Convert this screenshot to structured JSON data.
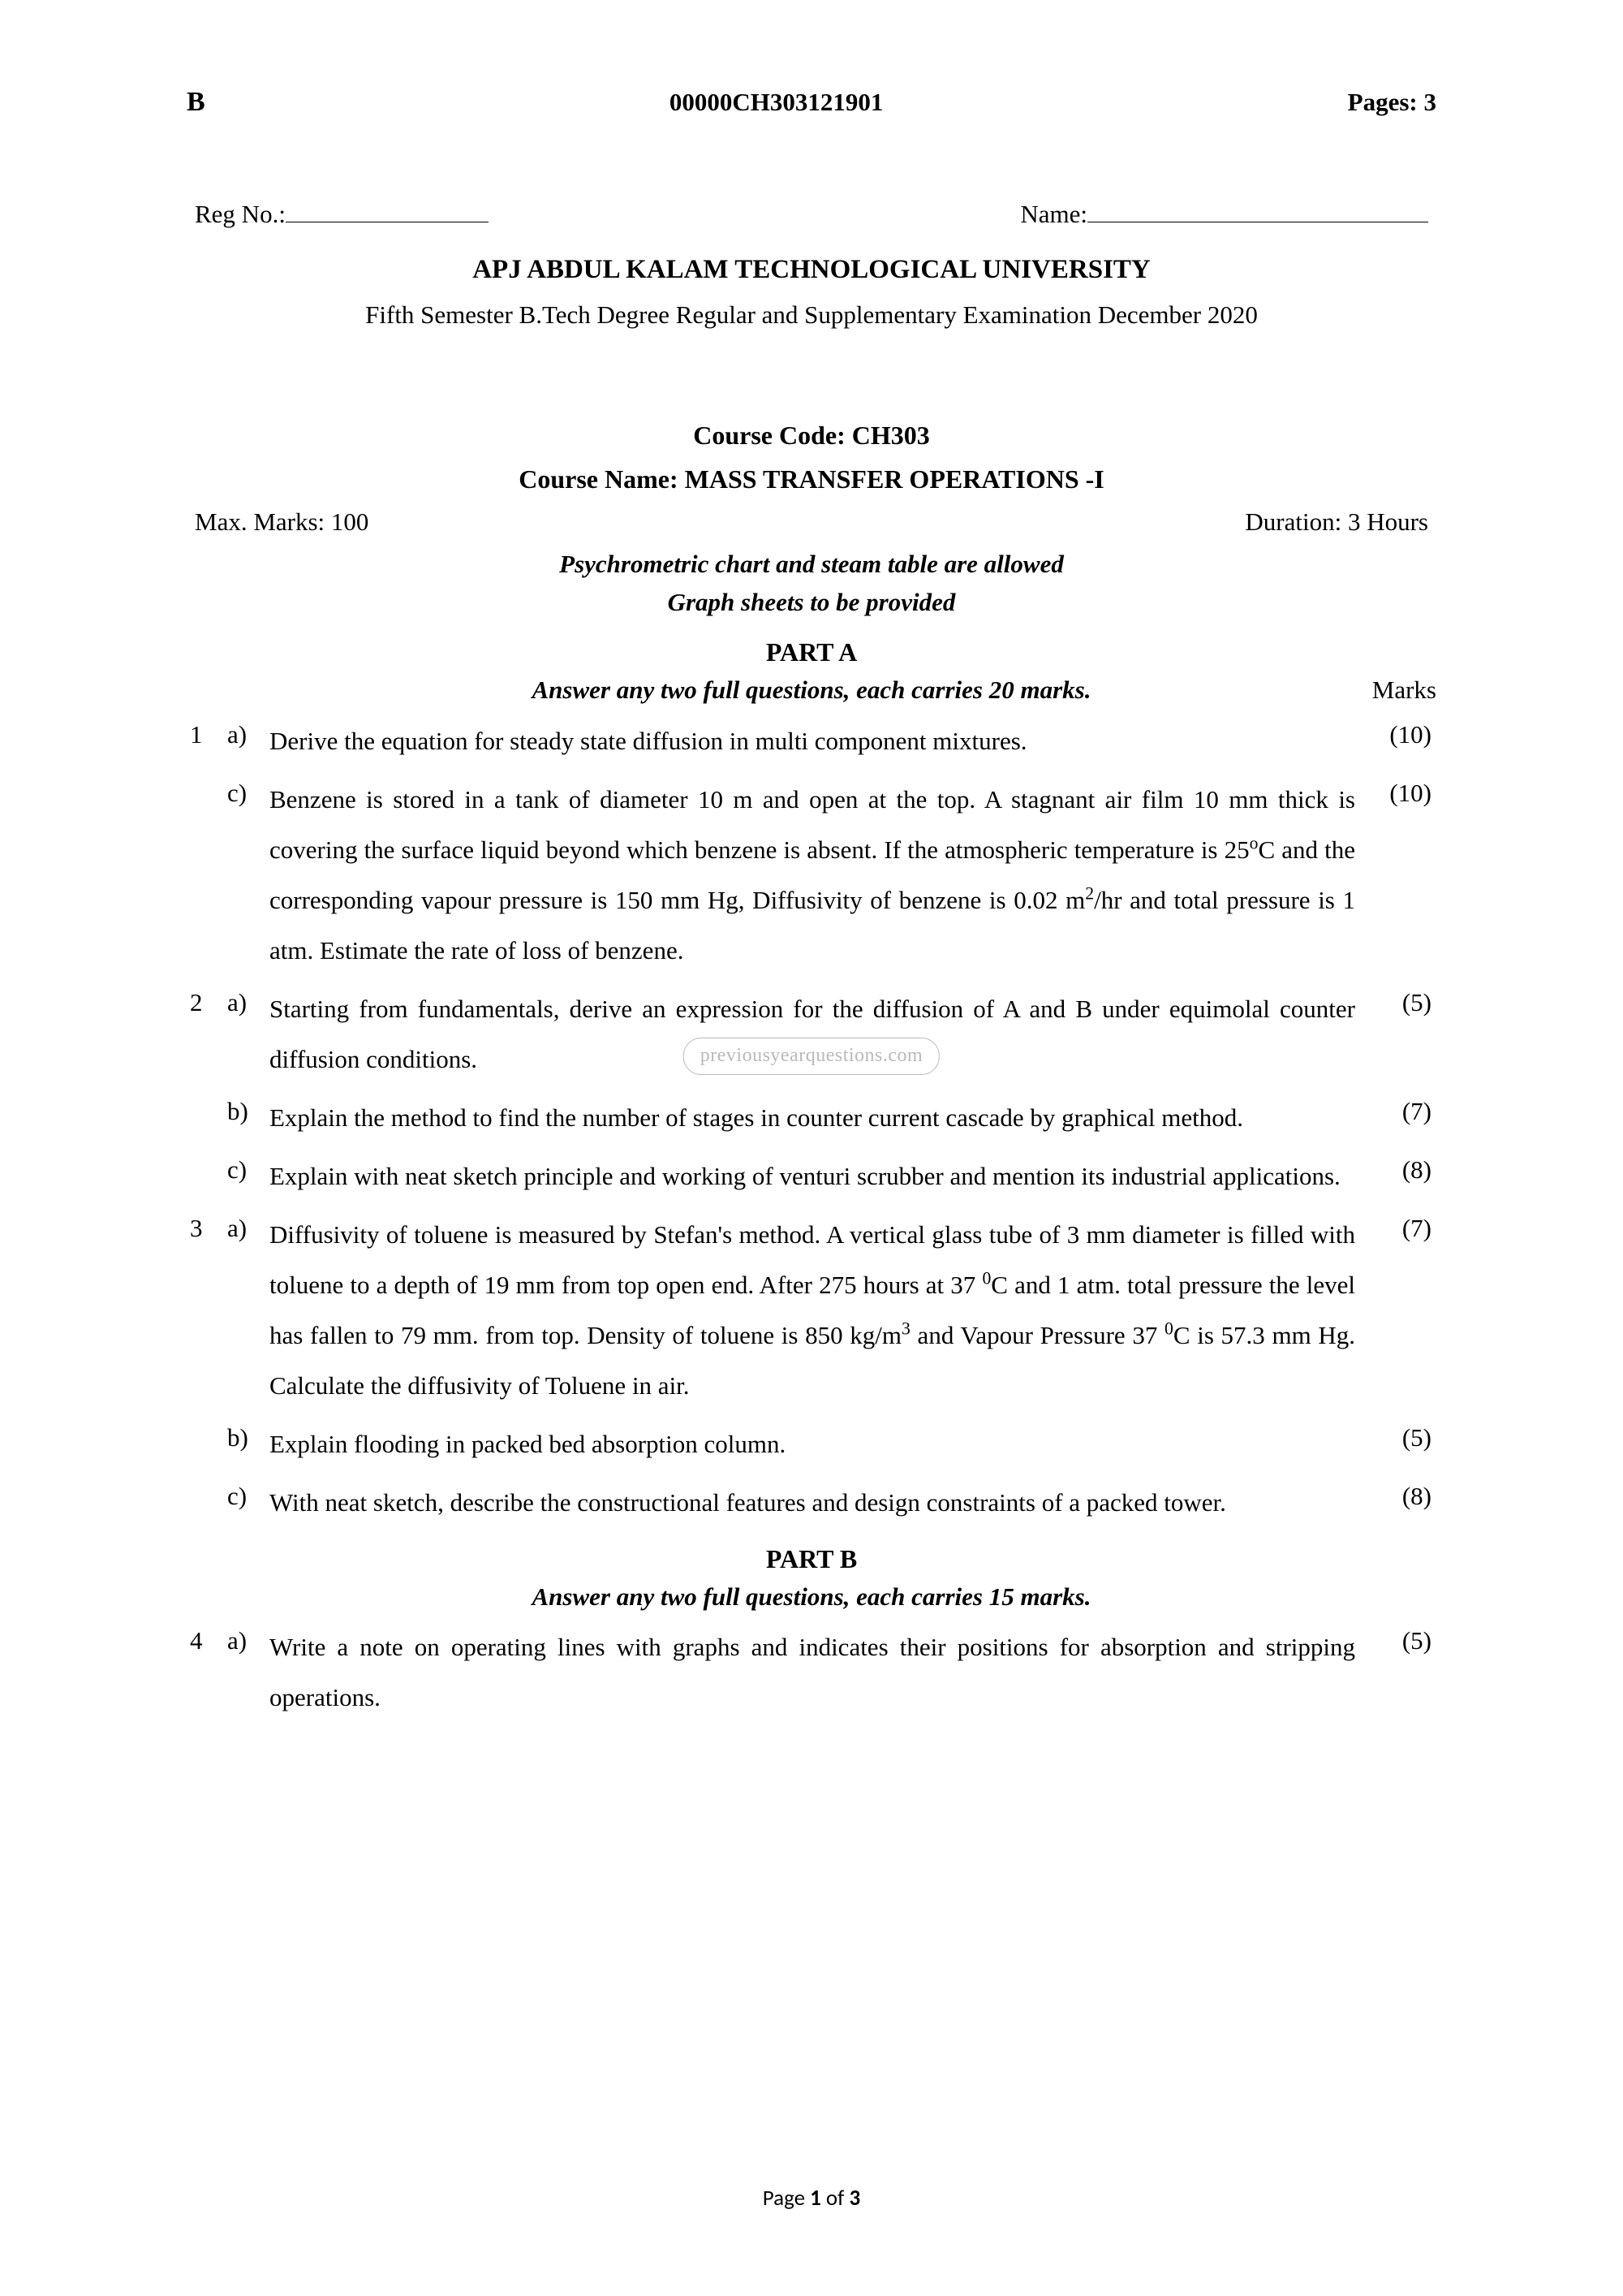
{
  "header": {
    "series_letter": "B",
    "paper_code": "00000CH303121901",
    "pages_label": "Pages: 3"
  },
  "reg_label": "Reg No.:",
  "name_label": "Name:",
  "university": "APJ ABDUL KALAM TECHNOLOGICAL UNIVERSITY",
  "exam_line": "Fifth Semester B.Tech Degree Regular and Supplementary Examination December 2020",
  "course_code": "Course Code: CH303",
  "course_name": "Course Name: MASS TRANSFER OPERATIONS -I",
  "max_marks": "Max. Marks: 100",
  "duration": "Duration: 3 Hours",
  "allowed_1": "Psychrometric chart and steam table are allowed",
  "allowed_2": "Graph sheets to be provided",
  "watermark": "previousyearquestions.com",
  "parts": {
    "a": {
      "heading": "PART A",
      "instruction": "Answer any two full questions, each carries 20 marks.",
      "marks_header": "Marks"
    },
    "b": {
      "heading": "PART B",
      "instruction": "Answer any two full questions, each carries 15 marks."
    }
  },
  "questions": [
    {
      "num": "1",
      "sub": "a)",
      "text": "Derive the equation for steady state diffusion in multi component mixtures.",
      "marks": "(10)"
    },
    {
      "num": "",
      "sub": "c)",
      "html": "Benzene is stored in a tank of diameter 10 m and open at the top. A stagnant air film 10 mm thick is covering the surface liquid beyond which benzene is absent. If the atmospheric temperature is 25<sup>o</sup>C and the corresponding vapour pressure is 150 mm Hg, Diffusivity of benzene is 0.02 m<sup>2</sup>/hr and total pressure is 1 atm. Estimate the rate of loss of benzene.",
      "marks": "(10)"
    },
    {
      "num": "2",
      "sub": "a)",
      "text": "Starting from fundamentals, derive an expression for the diffusion of A and B under equimolal counter diffusion conditions.",
      "marks": "(5)"
    },
    {
      "num": "",
      "sub": "b)",
      "text": "Explain the method to find the number of stages in counter current cascade by graphical method.",
      "marks": "(7)"
    },
    {
      "num": "",
      "sub": "c)",
      "text": "Explain with neat sketch principle and working of venturi scrubber and mention its industrial applications.",
      "marks": "(8)"
    },
    {
      "num": "3",
      "sub": "a)",
      "html": "Diffusivity of toluene is measured by Stefan's method. A vertical glass tube of 3 mm diameter is filled with toluene to a depth of 19 mm from top open end. After 275 hours at 37 <sup>0</sup>C and 1 atm. total pressure the level has fallen to 79 mm. from top. Density of toluene is 850 kg/m<sup>3</sup> and Vapour Pressure 37 <sup>0</sup>C is 57.3 mm Hg. Calculate the diffusivity of Toluene in air.",
      "marks": "(7)"
    },
    {
      "num": "",
      "sub": "b)",
      "text": "Explain flooding in packed bed absorption column.",
      "marks": "(5)"
    },
    {
      "num": "",
      "sub": "c)",
      "text": "With neat sketch, describe the constructional features and design constraints of a packed tower.",
      "marks": "(8)"
    }
  ],
  "questions_b": [
    {
      "num": "4",
      "sub": "a)",
      "text": "Write a note on operating lines with graphs and indicates their positions for absorption and stripping operations.",
      "marks": "(5)"
    }
  ],
  "footer": {
    "page_prefix": "Page ",
    "current": "1",
    "of": " of ",
    "total": "3"
  }
}
